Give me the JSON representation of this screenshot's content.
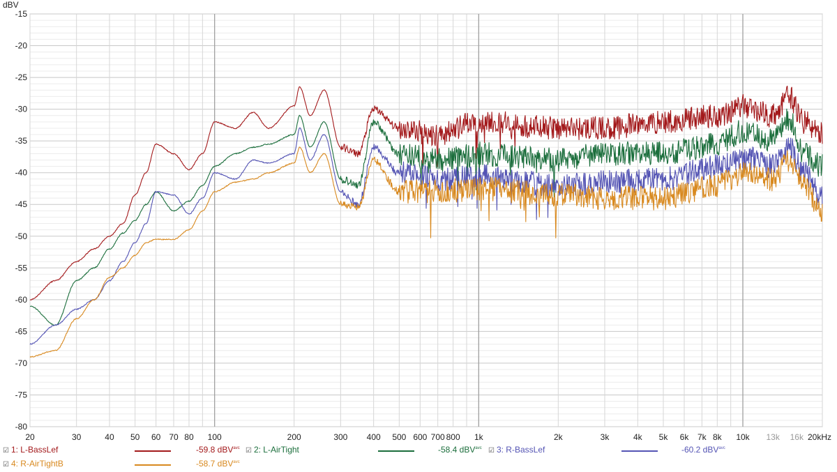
{
  "chart_data": {
    "type": "line",
    "ylabel": "dBV",
    "xunit": "kHz",
    "ylim": [
      -80,
      -15
    ],
    "xlim": [
      20,
      20000
    ],
    "xscale": "log",
    "grid": true,
    "yticks": [
      -15,
      -20,
      -25,
      -30,
      -35,
      -40,
      -45,
      -50,
      -55,
      -60,
      -65,
      -70,
      -75,
      -80
    ],
    "xticks": [
      {
        "v": 20,
        "l": "20"
      },
      {
        "v": 30,
        "l": "30"
      },
      {
        "v": 40,
        "l": "40"
      },
      {
        "v": 50,
        "l": "50"
      },
      {
        "v": 60,
        "l": "60"
      },
      {
        "v": 70,
        "l": "70"
      },
      {
        "v": 80,
        "l": "80"
      },
      {
        "v": 100,
        "l": "100"
      },
      {
        "v": 200,
        "l": "200"
      },
      {
        "v": 300,
        "l": "300"
      },
      {
        "v": 400,
        "l": "400"
      },
      {
        "v": 500,
        "l": "500"
      },
      {
        "v": 600,
        "l": "600"
      },
      {
        "v": 700,
        "l": "700"
      },
      {
        "v": 800,
        "l": "800"
      },
      {
        "v": 1000,
        "l": "1k"
      },
      {
        "v": 2000,
        "l": "2k"
      },
      {
        "v": 3000,
        "l": "3k"
      },
      {
        "v": 4000,
        "l": "4k"
      },
      {
        "v": 5000,
        "l": "5k"
      },
      {
        "v": 6000,
        "l": "6k"
      },
      {
        "v": 7000,
        "l": "7k"
      },
      {
        "v": 8000,
        "l": "8k"
      },
      {
        "v": 10000,
        "l": "10k"
      },
      {
        "v": 13000,
        "l": "13k",
        "muted": true
      },
      {
        "v": 16000,
        "l": "16k",
        "muted": true
      },
      {
        "v": 20000,
        "l": "20kHz"
      }
    ],
    "x": [
      20,
      25,
      30,
      35,
      40,
      45,
      50,
      55,
      60,
      70,
      80,
      90,
      100,
      120,
      140,
      160,
      200,
      210,
      230,
      260,
      300,
      350,
      400,
      500,
      700,
      1000,
      2000,
      3000,
      5000,
      8000,
      10000,
      13000,
      15000,
      17000,
      20000
    ],
    "series": [
      {
        "name": "1: L-BassLef",
        "value": "-59.8 dBV",
        "suffix": "avc",
        "color": "#a3191b",
        "values": [
          -60,
          -57,
          -54,
          -52,
          -50,
          -48,
          -43.5,
          -40,
          -35.5,
          -37,
          -39.5,
          -37,
          -32,
          -33,
          -30.5,
          -33,
          -29.5,
          -26.5,
          -31,
          -27,
          -36,
          -37,
          -30,
          -33,
          -34,
          -32,
          -33,
          -33,
          -32,
          -31,
          -29.5,
          -31,
          -28,
          -32,
          -34
        ]
      },
      {
        "name": "2: L-AirTight",
        "value": "-58.4 dBV",
        "suffix": "avc",
        "color": "#1b6e3c",
        "values": [
          -61,
          -64,
          -57,
          -55,
          -52,
          -49.5,
          -47.5,
          -45,
          -43,
          -46,
          -44.5,
          -42,
          -39,
          -37,
          -36,
          -35.5,
          -34,
          -31,
          -36,
          -32,
          -41,
          -42,
          -32,
          -37,
          -38,
          -37,
          -38,
          -37,
          -37,
          -35.5,
          -33.5,
          -35,
          -31.5,
          -37,
          -39
        ]
      },
      {
        "name": "3: R-BassLef",
        "value": "-60.2 dBV",
        "suffix": "avc",
        "color": "#5454b4",
        "values": [
          -67,
          -64,
          -61.5,
          -60,
          -57,
          -54,
          -51,
          -48,
          -43,
          -43.5,
          -46.5,
          -44,
          -40,
          -41,
          -38,
          -38.5,
          -37,
          -33,
          -38,
          -34,
          -43,
          -45,
          -36,
          -40,
          -41,
          -40.5,
          -42,
          -41.5,
          -41,
          -39,
          -37.5,
          -39,
          -36,
          -40,
          -44
        ]
      },
      {
        "name": "4: R-AirTightB",
        "value": "-58.7 dBV",
        "suffix": "avc",
        "color": "#d8891f",
        "values": [
          -69,
          -68,
          -63,
          -60,
          -56.5,
          -55,
          -53,
          -51,
          -50.5,
          -50.5,
          -49,
          -46,
          -43,
          -41.5,
          -41,
          -40,
          -38.5,
          -36,
          -40,
          -37,
          -45,
          -45.5,
          -38,
          -43,
          -43,
          -42.5,
          -43.5,
          -44,
          -44,
          -42,
          -40,
          -41,
          -38,
          -42,
          -46
        ]
      }
    ]
  }
}
